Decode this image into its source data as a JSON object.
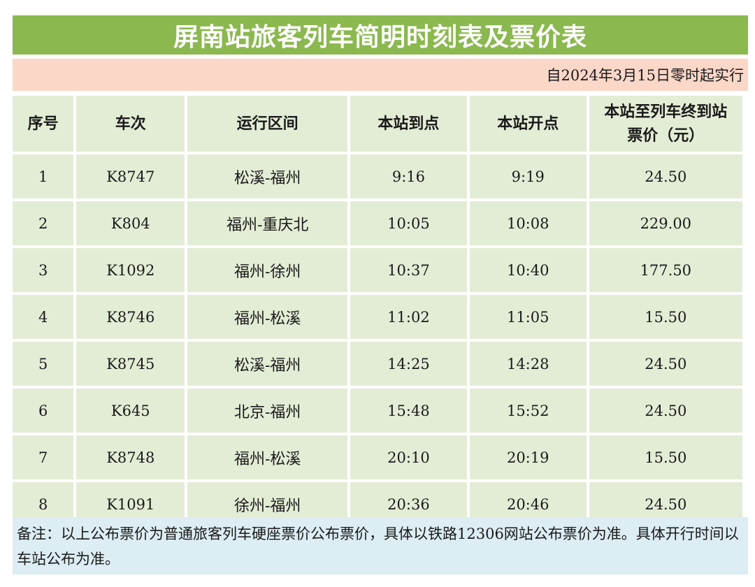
{
  "title": "屏南站旅客列车简明时刻表及票价表",
  "effective_note": "自2024年3月15日零时起实行",
  "headers": {
    "seq": "序号",
    "train": "车次",
    "route": "运行区间",
    "arrive": "本站到点",
    "depart": "本站开点",
    "fare_line1": "本站至列车终到站",
    "fare_line2": "票价（元）"
  },
  "rows": [
    {
      "seq": "1",
      "train": "K8747",
      "route": "松溪-福州",
      "arrive": "9:16",
      "depart": "9:19",
      "fare": "24.50"
    },
    {
      "seq": "2",
      "train": "K804",
      "route": "福州-重庆北",
      "arrive": "10:05",
      "depart": "10:08",
      "fare": "229.00"
    },
    {
      "seq": "3",
      "train": "K1092",
      "route": "福州-徐州",
      "arrive": "10:37",
      "depart": "10:40",
      "fare": "177.50"
    },
    {
      "seq": "4",
      "train": "K8746",
      "route": "福州-松溪",
      "arrive": "11:02",
      "depart": "11:05",
      "fare": "15.50"
    },
    {
      "seq": "5",
      "train": "K8745",
      "route": "松溪-福州",
      "arrive": "14:25",
      "depart": "14:28",
      "fare": "24.50"
    },
    {
      "seq": "6",
      "train": "K645",
      "route": "北京-福州",
      "arrive": "15:48",
      "depart": "15:52",
      "fare": "24.50"
    },
    {
      "seq": "7",
      "train": "K8748",
      "route": "福州-松溪",
      "arrive": "20:10",
      "depart": "20:19",
      "fare": "15.50"
    },
    {
      "seq": "8",
      "train": "K1091",
      "route": "徐州-福州",
      "arrive": "20:36",
      "depart": "20:46",
      "fare": "24.50"
    }
  ],
  "remark": "备注：以上公布票价为普通旅客列车硬座票价公布票价，具体以铁路12306网站公布票价为准。具体开行时间以车站公布为准。",
  "colors": {
    "title_bg": "#8bb84f",
    "subtitle_bg": "#fbd7c8",
    "cell_bg": "#e3edd6",
    "remark_bg": "#dcedf3"
  }
}
